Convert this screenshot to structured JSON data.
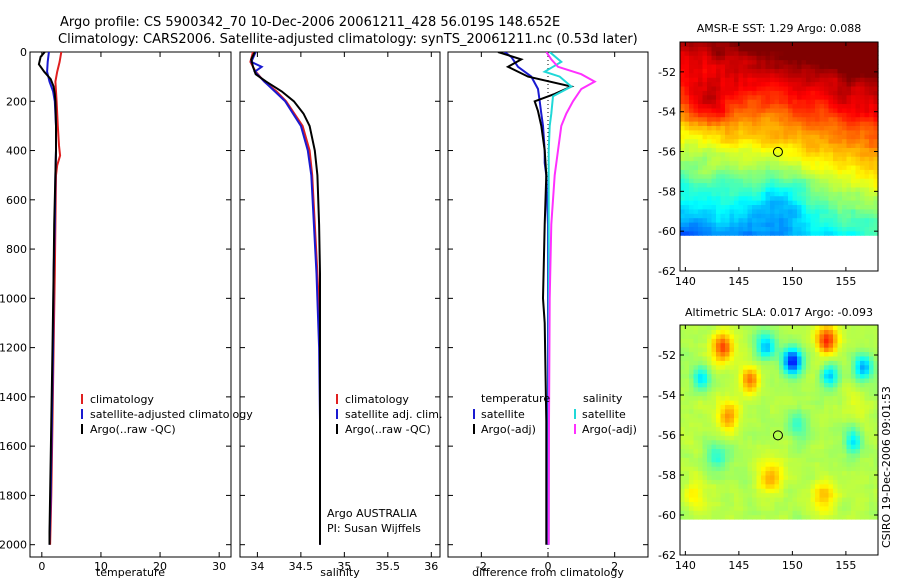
{
  "header": {
    "title_line1": "Argo profile: CS 5900342_70 10-Dec-2006 20061211_428 56.019S 148.652E",
    "title_line2": "Climatology: CARS2006. Satellite-adjusted climatology: synTS_20061211.nc (0.53d later)"
  },
  "side_label": "CSIRO 19-Dec-2006 09:01:53",
  "colors": {
    "climatology": "#e02020",
    "satellite": "#1a1ad0",
    "argo": "#000000",
    "sal_satellite": "#20d8d8",
    "sal_argo": "#ff30ff"
  },
  "chart_data": [
    {
      "id": "temperature",
      "type": "line",
      "xlabel": "temperature",
      "ylabel": "",
      "xlim": [
        -2,
        32
      ],
      "ylim": [
        2050,
        0
      ],
      "xticks": [
        0,
        10,
        20,
        30
      ],
      "xtick_labels": [
        "0",
        "10",
        "20",
        "30"
      ],
      "yticks": [
        0,
        200,
        400,
        600,
        800,
        1000,
        1200,
        1400,
        1600,
        1800,
        2000
      ],
      "ytick_labels": [
        "0",
        "200",
        "400",
        "600",
        "800",
        "1000",
        "1200",
        "1400",
        "1600",
        "1800",
        "2000"
      ],
      "legend": [
        "climatology",
        "satellite-adjusted climatology",
        "Argo(..raw -QC)"
      ],
      "series": [
        {
          "name": "climatology",
          "color_key": "climatology",
          "depth": [
            0,
            40,
            80,
            120,
            160,
            200,
            300,
            380,
            420,
            460,
            500,
            700,
            900,
            1200,
            1500,
            1800,
            2000
          ],
          "values": [
            3.3,
            3.0,
            2.6,
            2.3,
            2.4,
            2.5,
            2.7,
            2.9,
            3.1,
            2.6,
            2.4,
            2.3,
            2.2,
            2.0,
            1.8,
            1.6,
            1.4
          ]
        },
        {
          "name": "satellite-adjusted climatology",
          "color_key": "satellite",
          "depth": [
            0,
            40,
            80,
            120,
            160,
            200,
            300,
            400,
            500,
            700,
            900,
            1200,
            1500,
            1800,
            2000
          ],
          "values": [
            1.2,
            1.0,
            0.9,
            1.3,
            1.9,
            2.2,
            2.4,
            2.4,
            2.3,
            2.2,
            2.0,
            1.9,
            1.7,
            1.5,
            1.3
          ]
        },
        {
          "name": "Argo(..raw -QC)",
          "color_key": "argo",
          "depth": [
            0,
            20,
            50,
            80,
            110,
            140,
            170,
            200,
            300,
            400,
            500,
            700,
            900,
            1200,
            1500,
            1800,
            1950,
            2000
          ],
          "values": [
            0.5,
            -0.2,
            -0.5,
            0.4,
            1.5,
            2.0,
            2.2,
            2.3,
            2.4,
            2.4,
            2.3,
            2.1,
            2.0,
            1.8,
            1.6,
            1.4,
            1.3,
            1.3
          ]
        }
      ]
    },
    {
      "id": "salinity",
      "type": "line",
      "xlabel": "salinity",
      "ylabel": "",
      "xlim": [
        33.8,
        36.1
      ],
      "ylim": [
        2050,
        0
      ],
      "xticks": [
        34,
        34.5,
        35,
        35.5,
        36
      ],
      "xtick_labels": [
        "34",
        "34.5",
        "35",
        "35.5",
        "36"
      ],
      "legend": [
        "climatology",
        "satellite adj. clim.",
        "Argo(..raw -QC)"
      ],
      "annotation": [
        "Argo AUSTRALIA",
        "PI: Susan Wijffels"
      ],
      "series": [
        {
          "name": "climatology",
          "color_key": "climatology",
          "depth": [
            0,
            40,
            80,
            120,
            160,
            200,
            300,
            400,
            500,
            700,
            900,
            1050,
            1200,
            1500,
            1800,
            2000
          ],
          "values": [
            33.95,
            33.92,
            33.98,
            34.08,
            34.22,
            34.33,
            34.52,
            34.6,
            34.63,
            34.66,
            34.69,
            34.71,
            34.72,
            34.72,
            34.72,
            34.72
          ]
        },
        {
          "name": "satellite adj. clim.",
          "color_key": "satellite",
          "depth": [
            0,
            40,
            60,
            80,
            120,
            160,
            200,
            300,
            400,
            500,
            700,
            900,
            1200,
            1500,
            1800,
            2000
          ],
          "values": [
            33.98,
            33.93,
            34.05,
            33.97,
            34.08,
            34.2,
            34.32,
            34.5,
            34.58,
            34.62,
            34.65,
            34.68,
            34.71,
            34.72,
            34.72,
            34.72
          ]
        },
        {
          "name": "Argo(..raw -QC)",
          "color_key": "argo",
          "depth": [
            0,
            30,
            60,
            90,
            120,
            160,
            200,
            250,
            300,
            400,
            500,
            700,
            900,
            1200,
            1500,
            1800,
            2000
          ],
          "values": [
            33.97,
            33.93,
            33.95,
            33.98,
            34.1,
            34.28,
            34.42,
            34.53,
            34.6,
            34.66,
            34.69,
            34.71,
            34.72,
            34.72,
            34.72,
            34.72,
            34.72
          ]
        }
      ]
    },
    {
      "id": "difference",
      "type": "line",
      "xlabel": "difference from climatology",
      "ylabel": "",
      "xlim": [
        -3,
        3
      ],
      "ylim": [
        2050,
        0
      ],
      "xticks": [
        -2,
        0,
        2
      ],
      "xtick_labels": [
        "-2",
        "0",
        "2"
      ],
      "legend_temperature_title": "temperature",
      "legend_temperature": [
        "satellite",
        "Argo(-adj)"
      ],
      "legend_salinity_title": "salinity",
      "legend_salinity": [
        "satellite",
        "Argo(-adj)"
      ],
      "series": [
        {
          "name": "temperature satellite",
          "color_key": "satellite",
          "depth": [
            0,
            20,
            60,
            100,
            150,
            200,
            250,
            300,
            400,
            450,
            500,
            700,
            1000,
            1500,
            2000
          ],
          "values": [
            -1.3,
            -1.1,
            -0.9,
            -0.5,
            -0.3,
            -0.25,
            -0.2,
            -0.15,
            -0.1,
            -0.1,
            -0.05,
            0,
            0,
            0,
            0
          ]
        },
        {
          "name": "temperature Argo(-adj)",
          "color_key": "argo",
          "depth": [
            0,
            30,
            60,
            100,
            140,
            170,
            200,
            240,
            300,
            400,
            500,
            700,
            1000,
            1100,
            1500,
            2000
          ],
          "values": [
            -1.5,
            -0.8,
            -1.2,
            -0.6,
            0.7,
            0.2,
            -0.4,
            -0.3,
            -0.2,
            -0.1,
            -0.05,
            -0.1,
            -0.15,
            -0.1,
            -0.05,
            -0.05
          ]
        },
        {
          "name": "salinity satellite",
          "color_key": "sal_satellite",
          "depth": [
            0,
            40,
            80,
            100,
            140,
            180,
            250,
            300,
            400,
            600,
            1000,
            1500,
            2000
          ],
          "values": [
            0.05,
            0.4,
            -0.1,
            0.35,
            0.7,
            0.15,
            0.1,
            0.05,
            0.02,
            0.02,
            0.02,
            0.02,
            0.02
          ]
        },
        {
          "name": "salinity Argo(-adj)",
          "color_key": "sal_argo",
          "depth": [
            0,
            30,
            60,
            90,
            120,
            150,
            200,
            250,
            300,
            400,
            500,
            700,
            1000,
            1500,
            2000
          ],
          "values": [
            -0.05,
            0.1,
            0.3,
            1.0,
            1.4,
            1.0,
            0.75,
            0.55,
            0.4,
            0.3,
            0.2,
            0.1,
            0.05,
            0.03,
            0.02
          ]
        }
      ]
    },
    {
      "id": "sst_map",
      "type": "heatmap",
      "title": "AMSR-E SST: 1.29 Argo: 0.088",
      "xlim": [
        139.5,
        158
      ],
      "ylim": [
        -62,
        -50.5
      ],
      "xticks": [
        140,
        145,
        150,
        155
      ],
      "xtick_labels": [
        "140",
        "145",
        "150",
        "155"
      ],
      "yticks": [
        -52,
        -54,
        -56,
        -58,
        -60,
        -62
      ],
      "ytick_labels": [
        "-52",
        "-54",
        "-56",
        "-58",
        "-60",
        "-62"
      ],
      "data_lon_range": [
        139.5,
        158
      ],
      "data_lat_range": [
        -60.2,
        -50.5
      ],
      "marker": {
        "lon": 148.652,
        "lat": -56.019
      },
      "field": "sst"
    },
    {
      "id": "sla_map",
      "type": "heatmap",
      "title": "Altimetric SLA: 0.017 Argo: -0.093",
      "xlim": [
        139.5,
        158
      ],
      "ylim": [
        -62,
        -50.5
      ],
      "xticks": [
        140,
        145,
        150,
        155
      ],
      "xtick_labels": [
        "140",
        "145",
        "150",
        "155"
      ],
      "yticks": [
        -52,
        -54,
        -56,
        -58,
        -60,
        -62
      ],
      "ytick_labels": [
        "-52",
        "-54",
        "-56",
        "-58",
        "-60",
        "-62"
      ],
      "data_lon_range": [
        139.5,
        158
      ],
      "data_lat_range": [
        -60.2,
        -50.5
      ],
      "marker": {
        "lon": 148.652,
        "lat": -56.019
      },
      "field": "sla"
    }
  ]
}
